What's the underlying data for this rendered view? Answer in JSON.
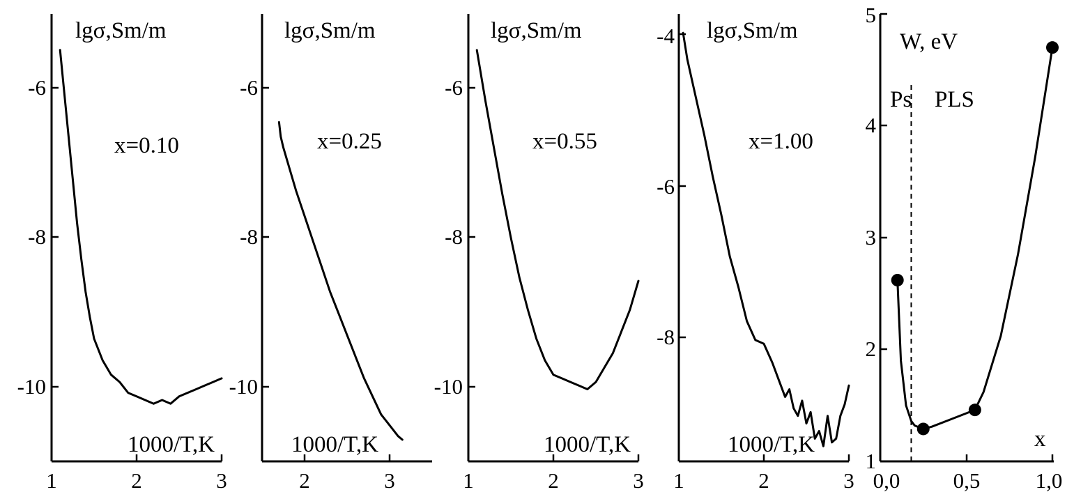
{
  "chart_data": [
    {
      "type": "line",
      "ylabel": "lgσ,Sm/m",
      "xlabel": "1000/T,K",
      "annotation": "x=0.10",
      "xlim": [
        1,
        3
      ],
      "ylim": [
        -11.0,
        -4.8
      ],
      "x_ticks": [
        "1",
        "2",
        "3"
      ],
      "y_ticks": [
        "-6",
        "-8",
        "-10"
      ],
      "grid": false,
      "series": [
        {
          "x": [
            1.1,
            1.15,
            1.2,
            1.25,
            1.3,
            1.35,
            1.4,
            1.45,
            1.5,
            1.6,
            1.7,
            1.8,
            1.9,
            2.0,
            2.1,
            2.2,
            2.3,
            2.4,
            2.5,
            2.6,
            2.7,
            2.8,
            2.9,
            3.0
          ],
          "y": [
            -5.3,
            -5.9,
            -6.5,
            -7.1,
            -7.7,
            -8.2,
            -8.65,
            -9.0,
            -9.3,
            -9.6,
            -9.8,
            -9.9,
            -10.05,
            -10.1,
            -10.15,
            -10.2,
            -10.15,
            -10.2,
            -10.1,
            -10.05,
            -10.0,
            -9.95,
            -9.9,
            -9.85
          ]
        }
      ]
    },
    {
      "type": "line",
      "ylabel": "lgσ,Sm/m",
      "xlabel": "1000/T,K",
      "annotation": "x=0.25",
      "xlim": [
        1.5,
        3.5
      ],
      "ylim": [
        -11.0,
        -4.8
      ],
      "x_ticks": [
        "2",
        "3"
      ],
      "y_ticks": [
        "-6",
        "-8",
        "-10"
      ],
      "grid": false,
      "series": [
        {
          "x": [
            1.7,
            1.72,
            1.75,
            1.8,
            1.9,
            2.0,
            2.1,
            2.2,
            2.3,
            2.4,
            2.5,
            2.6,
            2.7,
            2.8,
            2.9,
            3.0,
            3.1,
            3.15
          ],
          "y": [
            -6.3,
            -6.5,
            -6.65,
            -6.85,
            -7.25,
            -7.6,
            -7.95,
            -8.3,
            -8.65,
            -8.95,
            -9.25,
            -9.55,
            -9.85,
            -10.1,
            -10.35,
            -10.5,
            -10.65,
            -10.7
          ]
        }
      ]
    },
    {
      "type": "line",
      "ylabel": "lgσ,Sm/m",
      "xlabel": "1000/T,K",
      "annotation": "x=0.55",
      "xlim": [
        1,
        3
      ],
      "ylim": [
        -11.0,
        -4.8
      ],
      "x_ticks": [
        "1",
        "2",
        "3"
      ],
      "y_ticks": [
        "-6",
        "-8",
        "-10"
      ],
      "grid": false,
      "series": [
        {
          "x": [
            1.1,
            1.2,
            1.3,
            1.4,
            1.5,
            1.6,
            1.7,
            1.8,
            1.9,
            2.0,
            2.1,
            2.2,
            2.3,
            2.4,
            2.5,
            2.6,
            2.7,
            2.8,
            2.9,
            3.0
          ],
          "y": [
            -5.3,
            -6.0,
            -6.65,
            -7.3,
            -7.9,
            -8.45,
            -8.9,
            -9.3,
            -9.6,
            -9.8,
            -9.85,
            -9.9,
            -9.95,
            -10.0,
            -9.9,
            -9.7,
            -9.5,
            -9.2,
            -8.9,
            -8.5
          ]
        }
      ]
    },
    {
      "type": "line",
      "ylabel": "lgσ,Sm/m",
      "xlabel": "1000/T,K",
      "annotation": "x=1.00",
      "xlim": [
        1,
        3
      ],
      "ylim": [
        -9.5,
        -3.6
      ],
      "x_ticks": [
        "1",
        "2",
        "3"
      ],
      "y_ticks": [
        "-4",
        "-6",
        "-8"
      ],
      "grid": false,
      "series": [
        {
          "x": [
            1.05,
            1.1,
            1.2,
            1.3,
            1.4,
            1.5,
            1.6,
            1.7,
            1.8,
            1.9,
            2.0,
            2.1,
            2.2,
            2.25,
            2.3,
            2.35,
            2.4,
            2.45,
            2.5,
            2.55,
            2.6,
            2.65,
            2.7,
            2.75,
            2.8,
            2.85,
            2.9,
            2.95,
            3.0
          ],
          "y": [
            -3.85,
            -4.2,
            -4.7,
            -5.2,
            -5.75,
            -6.25,
            -6.8,
            -7.2,
            -7.65,
            -7.9,
            -7.95,
            -8.2,
            -8.5,
            -8.65,
            -8.55,
            -8.8,
            -8.9,
            -8.7,
            -9.0,
            -8.85,
            -9.2,
            -9.1,
            -9.3,
            -8.9,
            -9.25,
            -9.2,
            -8.9,
            -8.75,
            -8.5
          ]
        }
      ]
    },
    {
      "type": "scatter",
      "ylabel": "W, eV",
      "xlabel": "x",
      "xlim": [
        0.0,
        1.0
      ],
      "ylim": [
        1,
        5
      ],
      "x_ticks": [
        "0,0",
        "0,5",
        "1,0"
      ],
      "y_ticks": [
        "1",
        "2",
        "3",
        "4",
        "5"
      ],
      "grid": false,
      "region_labels": [
        "Ps",
        "PLS"
      ],
      "boundary_x": 0.18,
      "series": [
        {
          "x": [
            0.1,
            0.25,
            0.55,
            1.0
          ],
          "y": [
            2.62,
            1.29,
            1.46,
            4.7
          ]
        }
      ],
      "fit_curve": {
        "x": [
          0.1,
          0.12,
          0.15,
          0.18,
          0.2,
          0.25,
          0.3,
          0.4,
          0.5,
          0.55,
          0.6,
          0.7,
          0.8,
          0.9,
          1.0
        ],
        "y": [
          2.62,
          1.9,
          1.5,
          1.36,
          1.32,
          1.29,
          1.31,
          1.37,
          1.43,
          1.46,
          1.62,
          2.12,
          2.85,
          3.72,
          4.7
        ]
      }
    }
  ]
}
